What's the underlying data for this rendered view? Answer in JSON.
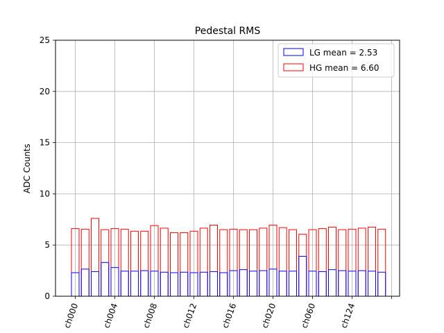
{
  "chart_data": {
    "type": "bar",
    "title": "Pedestal RMS",
    "xlabel": "",
    "ylabel": "ADC Counts",
    "ylim": [
      0,
      25
    ],
    "yticks": [
      0,
      5,
      10,
      15,
      20,
      25
    ],
    "xticks": [
      {
        "index": 0,
        "label": "ch000"
      },
      {
        "index": 4,
        "label": "ch004"
      },
      {
        "index": 8,
        "label": "ch008"
      },
      {
        "index": 12,
        "label": "ch012"
      },
      {
        "index": 16,
        "label": "ch016"
      },
      {
        "index": 20,
        "label": "ch020"
      },
      {
        "index": 24,
        "label": "ch060"
      },
      {
        "index": 28,
        "label": "ch124"
      },
      {
        "index": 32,
        "label": ""
      }
    ],
    "grid": true,
    "legend_position": "top-right",
    "series": [
      {
        "name": "LG mean = 2.53",
        "color": "#0000ff",
        "values": [
          2.3,
          2.65,
          2.4,
          3.3,
          2.8,
          2.45,
          2.45,
          2.5,
          2.45,
          2.35,
          2.3,
          2.35,
          2.3,
          2.35,
          2.4,
          2.3,
          2.5,
          2.6,
          2.45,
          2.5,
          2.65,
          2.45,
          2.45,
          3.9,
          2.45,
          2.4,
          2.6,
          2.5,
          2.45,
          2.5,
          2.45,
          2.35
        ]
      },
      {
        "name": "HG mean = 6.60",
        "color": "#ff0000",
        "values": [
          6.6,
          6.55,
          7.6,
          6.5,
          6.6,
          6.55,
          6.35,
          6.35,
          6.9,
          6.65,
          6.2,
          6.2,
          6.35,
          6.65,
          6.95,
          6.5,
          6.55,
          6.5,
          6.5,
          6.65,
          6.95,
          6.7,
          6.5,
          6.05,
          6.5,
          6.6,
          6.75,
          6.5,
          6.55,
          6.65,
          6.75,
          6.55
        ]
      }
    ]
  }
}
